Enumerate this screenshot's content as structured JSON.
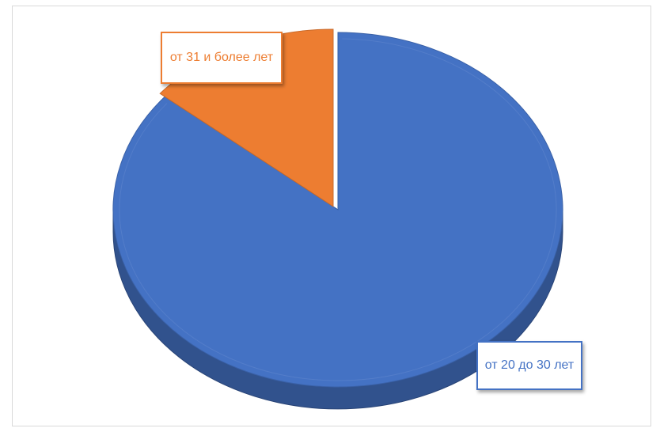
{
  "chart_data": {
    "type": "pie",
    "style": "3d",
    "title": "",
    "slices": [
      {
        "label": "от 20 до 30 лет",
        "value": 86,
        "color": "#4472c4"
      },
      {
        "label": "от 31 и более лет",
        "value": 14,
        "color": "#ed7d31"
      }
    ],
    "legend": "none",
    "data_labels": "category callouts"
  }
}
